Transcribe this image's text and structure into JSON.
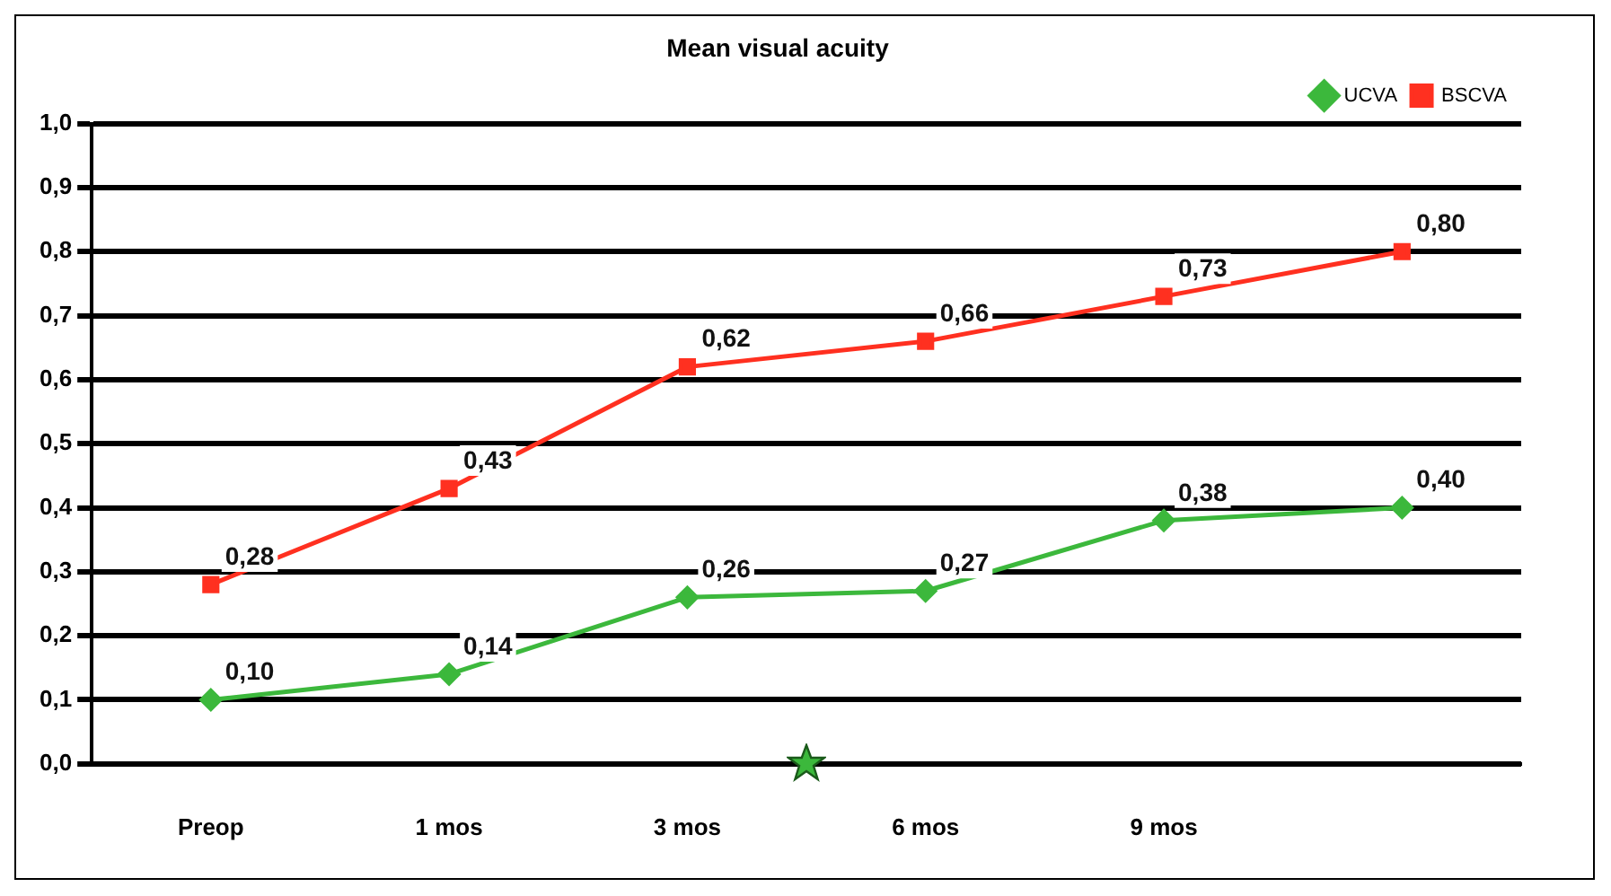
{
  "chart_data": {
    "type": "line",
    "title": "Mean visual acuity",
    "categories": [
      "Preop",
      "1 mos",
      "3 mos",
      "6 mos",
      "9 mos",
      null
    ],
    "series": [
      {
        "name": "UCVA",
        "color": "#3cb83c",
        "marker": "diamond",
        "values": [
          0.1,
          0.14,
          0.26,
          0.27,
          0.38,
          0.4
        ],
        "value_labels": [
          "0,10",
          "0,14",
          "0,26",
          "0,27",
          "0,38",
          "0,40"
        ]
      },
      {
        "name": "BSCVA",
        "color": "#ff3020",
        "marker": "square",
        "values": [
          0.28,
          0.43,
          0.62,
          0.66,
          0.73,
          0.8
        ],
        "value_labels": [
          "0,28",
          "0,43",
          "0,62",
          "0,66",
          "0,73",
          "0,80"
        ]
      }
    ],
    "ylim": [
      0,
      1
    ],
    "yticks": [
      {
        "value": 0,
        "label": "0,0"
      },
      {
        "value": 0.1,
        "label": "0,1"
      },
      {
        "value": 0.2,
        "label": "0,2"
      },
      {
        "value": 0.3,
        "label": "0,3"
      },
      {
        "value": 0.4,
        "label": "0,4"
      },
      {
        "value": 0.5,
        "label": "0,5"
      },
      {
        "value": 0.6,
        "label": "0,6"
      },
      {
        "value": 0.7,
        "label": "0,7"
      },
      {
        "value": 0.8,
        "label": "0,8"
      },
      {
        "value": 0.9,
        "label": "0,9"
      },
      {
        "value": 1,
        "label": "1,0"
      }
    ],
    "grid": "y",
    "legend": "top right",
    "line_style": "solid"
  }
}
